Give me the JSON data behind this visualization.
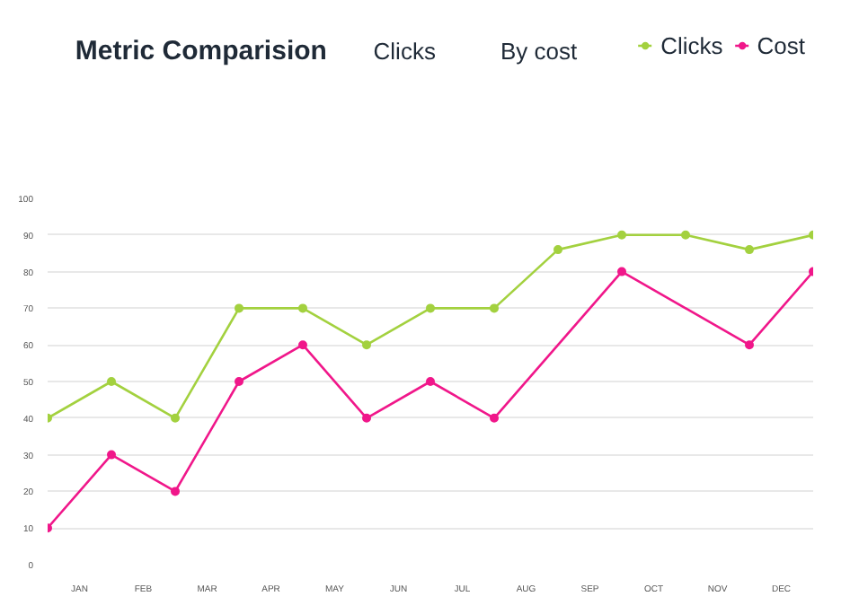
{
  "chart_data": {
    "type": "line",
    "title": "Metric Comparision",
    "annotations": [
      "Clicks",
      "By cost"
    ],
    "categories": [
      null,
      "JAN",
      null,
      "FEB",
      null,
      "MAR",
      null,
      "APR",
      null,
      "MAY",
      null,
      "JUN",
      null,
      "JUL",
      null,
      "AUG",
      null,
      "SEP",
      null,
      "OCT",
      null,
      "NOV",
      null,
      "DEC",
      null
    ],
    "ylim": [
      0,
      100
    ],
    "yticks": [
      0,
      10,
      20,
      30,
      40,
      50,
      60,
      70,
      80,
      90,
      100
    ],
    "series": [
      {
        "name": "Clicks",
        "color": "#a3d13f",
        "values": [
          40,
          null,
          50,
          null,
          40,
          null,
          70,
          null,
          70,
          null,
          60,
          null,
          70,
          null,
          70,
          null,
          86,
          null,
          90,
          null,
          90,
          null,
          86,
          null,
          90
        ]
      },
      {
        "name": "Cost",
        "color": "#f0178a",
        "values": [
          10,
          null,
          30,
          null,
          20,
          null,
          50,
          null,
          60,
          null,
          40,
          null,
          50,
          null,
          40,
          null,
          null,
          null,
          80,
          null,
          null,
          null,
          60,
          null,
          80
        ]
      }
    ],
    "grid": "y",
    "legend": "top right",
    "marker": "circle",
    "line_style": "solid"
  }
}
